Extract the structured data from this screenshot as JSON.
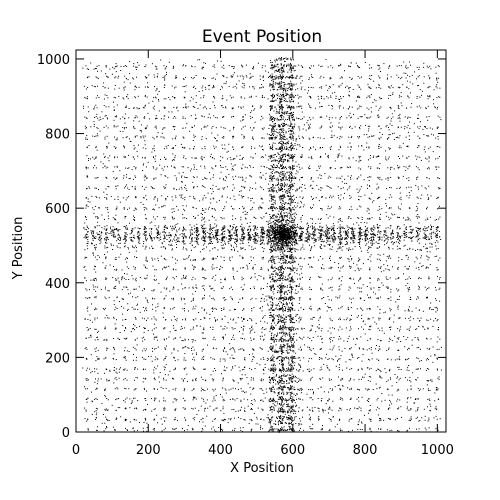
{
  "chart_data": {
    "type": "scatter",
    "title": "Event Position",
    "xlabel": "X Position",
    "ylabel": "Y Position",
    "xlim": [
      0,
      1024
    ],
    "ylim": [
      0,
      1024
    ],
    "xticks": [
      0,
      200,
      400,
      600,
      800,
      1000
    ],
    "yticks": [
      0,
      200,
      400,
      600,
      800,
      1000
    ],
    "grid": false,
    "marker": "dot",
    "point_color": "#000000",
    "pattern": {
      "description_points": "dense grid of event clusters",
      "grid_spacing": 27,
      "vertical_band_x_center": 575,
      "vertical_band_half_width": 45,
      "horizontal_band_y_center": 530,
      "horizontal_band_half_height": 28,
      "central_blob": {
        "x": 570,
        "y": 530,
        "radius": 40
      },
      "x_extent": [
        28,
        1000
      ],
      "y_extent": [
        8,
        1000
      ]
    }
  }
}
